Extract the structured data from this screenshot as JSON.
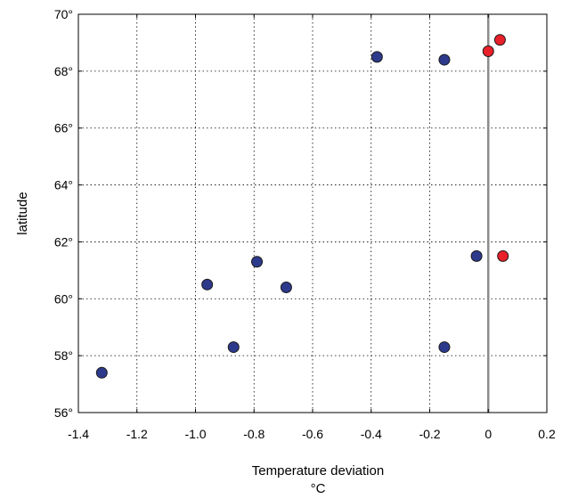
{
  "chart_data": {
    "type": "scatter",
    "title": "",
    "xlabel": "Temperature deviation",
    "xunit": "°C",
    "ylabel": "latitude",
    "xlim": [
      -1.4,
      0.2
    ],
    "ylim": [
      56,
      70
    ],
    "xticks": [
      -1.4,
      -1.2,
      -1.0,
      -0.8,
      -0.6,
      -0.4,
      -0.2,
      0,
      0.2
    ],
    "xtick_labels": [
      "-1.4",
      "-1.2",
      "-1.0",
      "-0.8",
      "-0.6",
      "-0.4",
      "-0.2",
      "0",
      "0.2"
    ],
    "yticks": [
      56,
      58,
      60,
      62,
      64,
      66,
      68,
      70
    ],
    "ytick_labels": [
      "56°",
      "58°",
      "60°",
      "62°",
      "64°",
      "66°",
      "68°",
      "70°"
    ],
    "grid": true,
    "reference_line_x": 0,
    "reference_line_color": "#8c8c8c",
    "series": [
      {
        "color": "#2d3a8c",
        "points": [
          {
            "x": -1.32,
            "y": 57.4
          },
          {
            "x": -0.96,
            "y": 60.5
          },
          {
            "x": -0.87,
            "y": 58.3
          },
          {
            "x": -0.79,
            "y": 61.3
          },
          {
            "x": -0.69,
            "y": 60.4
          },
          {
            "x": -0.38,
            "y": 68.5
          },
          {
            "x": -0.15,
            "y": 68.4
          },
          {
            "x": -0.15,
            "y": 58.3
          },
          {
            "x": -0.04,
            "y": 61.5
          }
        ]
      },
      {
        "color": "#e8202a",
        "points": [
          {
            "x": 0.0,
            "y": 68.7
          },
          {
            "x": 0.04,
            "y": 69.1
          },
          {
            "x": 0.05,
            "y": 61.5
          }
        ]
      }
    ]
  }
}
